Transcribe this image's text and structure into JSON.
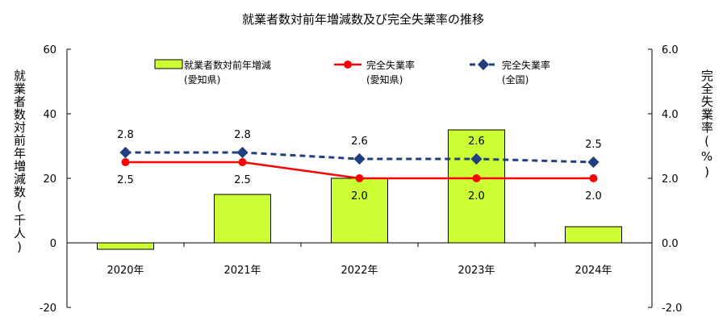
{
  "chart_data": {
    "type": "bar",
    "title": "就業者数対前年増減数及び完全失業率の推移",
    "categories": [
      "2020年",
      "2021年",
      "2022年",
      "2023年",
      "2024年"
    ],
    "ylabel": "就業者数対前年増減数(千人)",
    "y2label": "完全失業率(%)",
    "ylim": [
      -20,
      60
    ],
    "y_ticks": [
      "-20",
      "0",
      "20",
      "40",
      "60"
    ],
    "y2lim": [
      -2.0,
      6.0
    ],
    "y2_ticks": [
      "-2.0",
      "0.0",
      "2.0",
      "4.0",
      "6.0"
    ],
    "series": [
      {
        "name": "就業者数対前年増減\n(愛知県)",
        "kind": "bar",
        "axis": "left",
        "color": "#ccff33",
        "values": [
          -2,
          15,
          20,
          35,
          5
        ]
      },
      {
        "name": "完全失業率\n(愛知県)",
        "kind": "line",
        "axis": "right",
        "color": "#ff0000",
        "values": [
          2.5,
          2.5,
          2.0,
          2.0,
          2.0
        ],
        "labels": [
          "2.5",
          "2.5",
          "2.0",
          "2.0",
          "2.0"
        ]
      },
      {
        "name": "完全失業率\n(全国)",
        "kind": "line",
        "axis": "right",
        "color": "#1f3f7f",
        "dashed": true,
        "values": [
          2.8,
          2.8,
          2.6,
          2.6,
          2.5
        ],
        "labels": [
          "2.8",
          "2.8",
          "2.6",
          "2.6",
          "2.5"
        ]
      }
    ],
    "legend_position": "top",
    "grid": false
  }
}
